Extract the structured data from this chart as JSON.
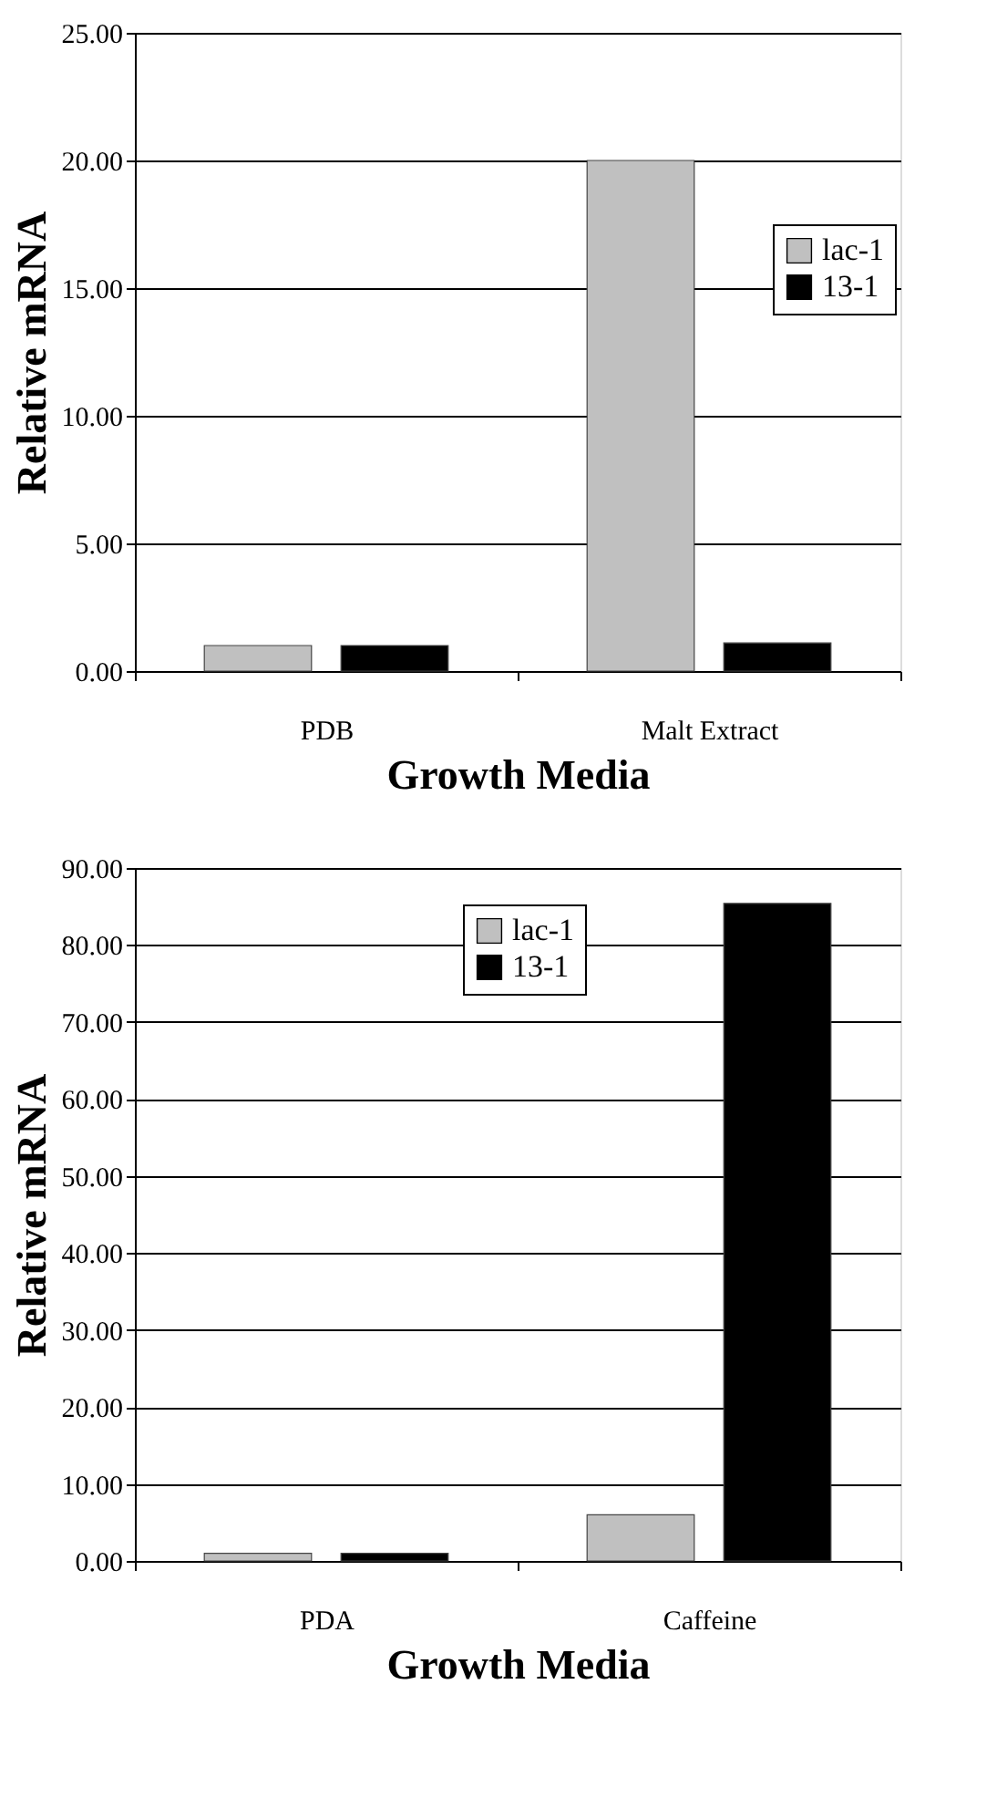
{
  "chart_data": [
    {
      "type": "bar",
      "xlabel": "Growth Media",
      "ylabel": "Relative mRNA",
      "categories": [
        "PDB",
        "Malt Extract"
      ],
      "series": [
        {
          "name": "lac-1",
          "color": "#c0c0c0",
          "values": [
            1.0,
            20.0
          ]
        },
        {
          "name": "13-1",
          "color": "#000000",
          "values": [
            1.0,
            1.1
          ]
        }
      ],
      "ylim": [
        0,
        25
      ],
      "yticks": [
        {
          "value": 0,
          "label": "0.00"
        },
        {
          "value": 5,
          "label": "5.00"
        },
        {
          "value": 10,
          "label": "10.00"
        },
        {
          "value": 15,
          "label": "15.00"
        },
        {
          "value": 20,
          "label": "20.00"
        },
        {
          "value": 25,
          "label": "25.00"
        }
      ],
      "grid": "y",
      "legend": "right"
    },
    {
      "type": "bar",
      "xlabel": "Growth Media",
      "ylabel": "Relative mRNA",
      "categories": [
        "PDA",
        "Caffeine"
      ],
      "series": [
        {
          "name": "lac-1",
          "color": "#c0c0c0",
          "values": [
            1.0,
            6.0
          ]
        },
        {
          "name": "13-1",
          "color": "#000000",
          "values": [
            1.0,
            85.4
          ]
        }
      ],
      "ylim": [
        0,
        90
      ],
      "yticks": [
        {
          "value": 0,
          "label": "0.00"
        },
        {
          "value": 10,
          "label": "10.00"
        },
        {
          "value": 20,
          "label": "20.00"
        },
        {
          "value": 30,
          "label": "30.00"
        },
        {
          "value": 40,
          "label": "40.00"
        },
        {
          "value": 50,
          "label": "50.00"
        },
        {
          "value": 60,
          "label": "60.00"
        },
        {
          "value": 70,
          "label": "70.00"
        },
        {
          "value": 80,
          "label": "80.00"
        },
        {
          "value": 90,
          "label": "90.00"
        }
      ],
      "grid": "y",
      "legend": "top"
    }
  ]
}
